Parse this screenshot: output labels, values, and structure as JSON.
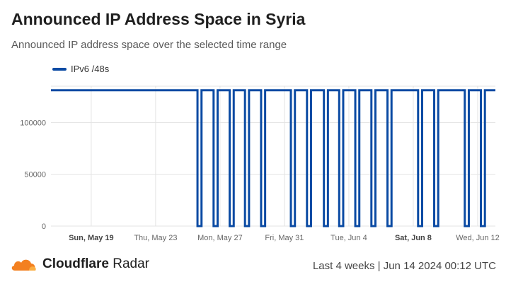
{
  "header": {
    "title": "Announced IP Address Space in Syria",
    "subtitle": "Announced IP address space over the selected time range"
  },
  "legend": {
    "label": "IPv6 /48s",
    "color": "#0a4aa3"
  },
  "footer": {
    "brand_strong": "Cloudflare",
    "brand_light": " Radar",
    "meta": "Last 4 weeks | Jun 14 2024 00:12 UTC"
  },
  "colors": {
    "series": "#0a4aa3",
    "grid": "#e3e3e3",
    "cloud_orange": "#f38020",
    "cloud_light": "#fbad41"
  },
  "chart_data": {
    "type": "line",
    "title": "Announced IP Address Space in Syria",
    "subtitle": "Announced IP address space over the selected time range",
    "xlabel": "",
    "ylabel": "",
    "ylim": [
      0,
      135000
    ],
    "xlim": [
      0,
      27.6
    ],
    "grid": true,
    "legend_position": "top-left",
    "y_ticks": [
      0,
      50000,
      100000
    ],
    "x_ticks": [
      {
        "day": 2.5,
        "label": "Sun, May 19",
        "bold": true
      },
      {
        "day": 6.5,
        "label": "Thu, May 23",
        "bold": false
      },
      {
        "day": 10.5,
        "label": "Mon, May 27",
        "bold": false
      },
      {
        "day": 14.5,
        "label": "Fri, May 31",
        "bold": false
      },
      {
        "day": 18.5,
        "label": "Tue, Jun 4",
        "bold": false
      },
      {
        "day": 22.5,
        "label": "Sat, Jun 8",
        "bold": true
      },
      {
        "day": 26.5,
        "label": "Wed, Jun 12",
        "bold": false
      }
    ],
    "series": [
      {
        "name": "IPv6 /48s",
        "baseline_value": 131072,
        "dip_value": 0,
        "dip_intervals_days": [
          [
            9.1,
            9.35
          ],
          [
            10.1,
            10.35
          ],
          [
            11.1,
            11.35
          ],
          [
            12.05,
            12.3
          ],
          [
            13.05,
            13.3
          ],
          [
            14.9,
            15.15
          ],
          [
            15.9,
            16.15
          ],
          [
            16.95,
            17.2
          ],
          [
            17.9,
            18.15
          ],
          [
            18.9,
            19.15
          ],
          [
            19.9,
            20.15
          ],
          [
            20.9,
            21.15
          ],
          [
            22.8,
            23.05
          ],
          [
            23.8,
            24.05
          ],
          [
            25.7,
            25.95
          ],
          [
            26.7,
            26.95
          ],
          [
            27.7,
            27.95
          ]
        ]
      }
    ]
  }
}
